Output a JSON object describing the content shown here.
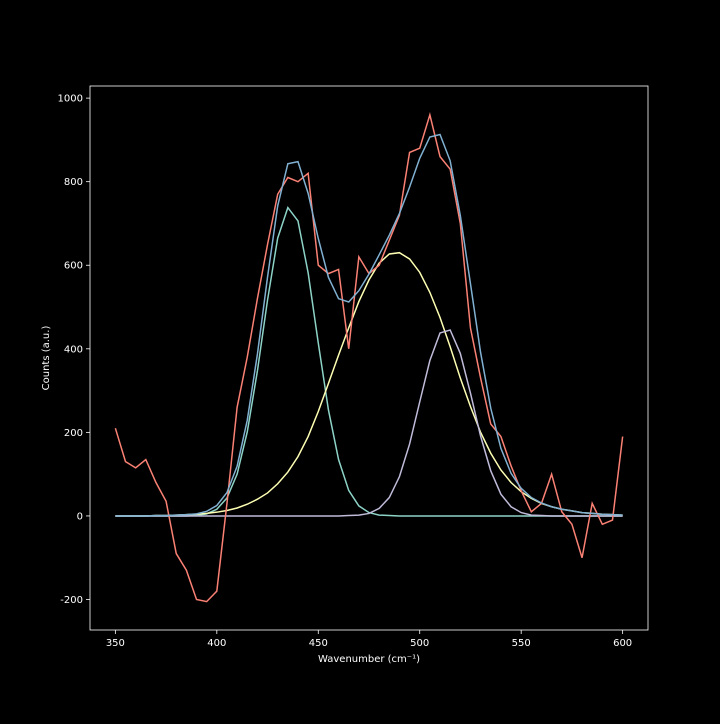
{
  "chart_data": {
    "type": "line",
    "x_label": "Wavenumber (cm⁻¹)",
    "y_label": "Counts (a.u.)",
    "x": [
      350,
      355,
      360,
      365,
      370,
      375,
      380,
      385,
      390,
      395,
      400,
      405,
      410,
      415,
      420,
      425,
      430,
      435,
      440,
      445,
      450,
      455,
      460,
      465,
      470,
      475,
      480,
      485,
      490,
      495,
      500,
      505,
      510,
      515,
      520,
      525,
      530,
      535,
      540,
      545,
      550,
      555,
      560,
      565,
      570,
      575,
      580,
      585,
      590,
      595,
      600
    ],
    "xlim": [
      337.5,
      612.5
    ],
    "ylim": [
      -273,
      1029
    ],
    "xticks": [
      350,
      400,
      450,
      500,
      550,
      600
    ],
    "yticks": [
      -200,
      0,
      200,
      400,
      600,
      800,
      1000
    ],
    "series": [
      {
        "color": "#8dd3c7",
        "values": [
          0,
          0,
          0,
          0,
          0,
          0,
          0,
          0,
          1,
          5,
          16,
          43,
          100,
          201,
          347,
          517,
          665,
          738,
          706,
          582,
          414,
          254,
          135,
          61,
          24,
          8,
          2,
          1,
          0,
          0,
          0,
          0,
          0,
          0,
          0,
          0,
          0,
          0,
          0,
          0,
          0,
          0,
          0,
          0,
          0,
          0,
          0,
          0,
          0,
          0,
          0
        ]
      },
      {
        "color": "#feffb3",
        "values": [
          0,
          0,
          0,
          0,
          1,
          1,
          2,
          3,
          4,
          6,
          9,
          13,
          19,
          28,
          40,
          55,
          77,
          105,
          142,
          190,
          250,
          317,
          385,
          450,
          513,
          565,
          605,
          627,
          630,
          615,
          583,
          535,
          475,
          405,
          330,
          262,
          200,
          150,
          110,
          80,
          58,
          42,
          30,
          22,
          16,
          12,
          8,
          6,
          4,
          3,
          2
        ]
      },
      {
        "color": "#bfbbd9",
        "values": [
          0,
          0,
          0,
          0,
          0,
          0,
          0,
          0,
          0,
          0,
          0,
          0,
          0,
          0,
          0,
          0,
          0,
          0,
          0,
          0,
          0,
          0,
          0,
          1,
          2,
          6,
          18,
          44,
          94,
          172,
          273,
          372,
          438,
          445,
          389,
          294,
          191,
          108,
          52,
          22,
          8,
          2,
          1,
          0,
          0,
          0,
          0,
          0,
          0,
          0,
          0
        ]
      },
      {
        "color": "#fa8174",
        "values": [
          210,
          130,
          115,
          135,
          80,
          35,
          -90,
          -130,
          -200,
          -205,
          -180,
          30,
          260,
          380,
          520,
          650,
          770,
          810,
          800,
          820,
          600,
          580,
          590,
          400,
          620,
          580,
          600,
          660,
          720,
          870,
          880,
          960,
          860,
          830,
          700,
          450,
          330,
          220,
          190,
          120,
          60,
          10,
          30,
          100,
          10,
          -20,
          -100,
          30,
          -20,
          -10,
          190
        ]
      },
      {
        "color": "#81b1d2",
        "values": [
          0,
          0,
          0,
          0,
          1,
          1,
          2,
          3,
          5,
          11,
          25,
          56,
          119,
          229,
          387,
          572,
          742,
          843,
          848,
          772,
          664,
          571,
          520,
          512,
          539,
          579,
          625,
          672,
          724,
          787,
          856,
          907,
          913,
          850,
          719,
          556,
          391,
          258,
          162,
          102,
          66,
          44,
          31,
          22,
          16,
          12,
          8,
          6,
          4,
          3,
          2
        ]
      }
    ]
  }
}
